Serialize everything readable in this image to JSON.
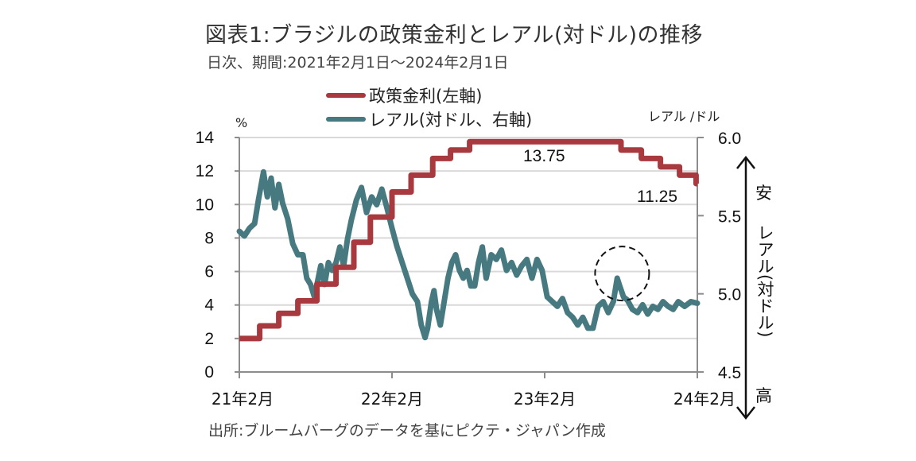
{
  "title": "図表1:ブラジルの政策金利とレアル(対ドル)の推移",
  "subtitle": "日次、期間:2021年2月1日～2024年2月1日",
  "source": "出所:ブルームバーグのデータを基にピクテ・ジャパン作成",
  "colors": {
    "policy_rate": "#a8393f",
    "brl": "#477a80",
    "grid": "#d9d9d9",
    "axis": "#8c8c8c"
  },
  "chart_data": {
    "type": "line",
    "title": "図表1:ブラジルの政策金利とレアル(対ドル)の推移",
    "left_axis": {
      "unit_label": "%",
      "range": [
        0,
        14
      ],
      "ticks": [
        0,
        2,
        4,
        6,
        8,
        10,
        12,
        14
      ],
      "tick_labels": [
        "0",
        "2",
        "4",
        "6",
        "8",
        "10",
        "12",
        "14"
      ]
    },
    "right_axis": {
      "unit_label": "レアル /ドル",
      "range": [
        4.5,
        6.0
      ],
      "ticks": [
        4.5,
        5.0,
        5.5,
        6.0
      ],
      "tick_labels": [
        "4.5",
        "5.0",
        "5.5",
        "6.0"
      ]
    },
    "x_axis": {
      "range_months": [
        0,
        36
      ],
      "ticks": [
        0,
        12,
        24,
        36
      ],
      "tick_labels": [
        "21年2月",
        "22年2月",
        "23年2月",
        "24年2月"
      ]
    },
    "grid": true,
    "legend": {
      "placement": "top-center",
      "entries": [
        "政策金利(左軸)",
        "レアル(対ドル、右軸)"
      ]
    },
    "series": [
      {
        "name": "政策金利(左軸)",
        "axis": "left",
        "style": "step",
        "points": [
          [
            0,
            2.0
          ],
          [
            1.6,
            2.75
          ],
          [
            3.1,
            3.5
          ],
          [
            4.6,
            4.25
          ],
          [
            6.1,
            5.25
          ],
          [
            7.6,
            6.25
          ],
          [
            9.0,
            7.75
          ],
          [
            10.3,
            9.25
          ],
          [
            12.0,
            10.75
          ],
          [
            13.5,
            11.75
          ],
          [
            15.2,
            12.75
          ],
          [
            16.6,
            13.25
          ],
          [
            18.1,
            13.75
          ],
          [
            30.0,
            13.25
          ],
          [
            31.6,
            12.75
          ],
          [
            33.1,
            12.25
          ],
          [
            34.6,
            11.75
          ],
          [
            35.9,
            11.25
          ],
          [
            36,
            11.25
          ]
        ]
      },
      {
        "name": "レアル(対ドル、右軸)",
        "axis": "right",
        "style": "line",
        "points": [
          [
            0,
            5.4
          ],
          [
            0.4,
            5.37
          ],
          [
            0.8,
            5.42
          ],
          [
            1.2,
            5.45
          ],
          [
            1.5,
            5.6
          ],
          [
            1.9,
            5.78
          ],
          [
            2.2,
            5.62
          ],
          [
            2.5,
            5.74
          ],
          [
            2.8,
            5.55
          ],
          [
            3.1,
            5.7
          ],
          [
            3.4,
            5.58
          ],
          [
            3.8,
            5.48
          ],
          [
            4.2,
            5.32
          ],
          [
            4.6,
            5.25
          ],
          [
            5.0,
            5.25
          ],
          [
            5.3,
            5.1
          ],
          [
            5.6,
            5.06
          ],
          [
            5.9,
            4.98
          ],
          [
            6.1,
            5.06
          ],
          [
            6.4,
            5.18
          ],
          [
            6.7,
            5.06
          ],
          [
            7.0,
            5.2
          ],
          [
            7.3,
            5.15
          ],
          [
            7.6,
            5.2
          ],
          [
            7.9,
            5.3
          ],
          [
            8.2,
            5.18
          ],
          [
            8.5,
            5.35
          ],
          [
            8.8,
            5.47
          ],
          [
            9.2,
            5.6
          ],
          [
            9.6,
            5.68
          ],
          [
            10.0,
            5.52
          ],
          [
            10.4,
            5.62
          ],
          [
            10.8,
            5.57
          ],
          [
            11.2,
            5.67
          ],
          [
            11.6,
            5.55
          ],
          [
            12.0,
            5.42
          ],
          [
            12.4,
            5.3
          ],
          [
            12.8,
            5.2
          ],
          [
            13.2,
            5.1
          ],
          [
            13.6,
            5.0
          ],
          [
            14.0,
            4.95
          ],
          [
            14.3,
            4.8
          ],
          [
            14.6,
            4.72
          ],
          [
            14.8,
            4.78
          ],
          [
            15.1,
            4.95
          ],
          [
            15.3,
            5.02
          ],
          [
            15.5,
            4.9
          ],
          [
            15.8,
            4.8
          ],
          [
            16.1,
            4.95
          ],
          [
            16.4,
            5.1
          ],
          [
            16.7,
            5.2
          ],
          [
            17.0,
            5.25
          ],
          [
            17.3,
            5.15
          ],
          [
            17.6,
            5.1
          ],
          [
            17.9,
            5.15
          ],
          [
            18.2,
            5.05
          ],
          [
            18.5,
            5.05
          ],
          [
            18.8,
            5.2
          ],
          [
            19.1,
            5.3
          ],
          [
            19.4,
            5.1
          ],
          [
            19.8,
            5.25
          ],
          [
            20.2,
            5.22
          ],
          [
            20.6,
            5.28
          ],
          [
            21.0,
            5.15
          ],
          [
            21.4,
            5.2
          ],
          [
            21.8,
            5.12
          ],
          [
            22.2,
            5.18
          ],
          [
            22.6,
            5.22
          ],
          [
            23.0,
            5.1
          ],
          [
            23.4,
            5.22
          ],
          [
            23.8,
            5.15
          ],
          [
            24.2,
            4.98
          ],
          [
            24.6,
            4.95
          ],
          [
            25.0,
            4.92
          ],
          [
            25.4,
            4.97
          ],
          [
            25.8,
            4.88
          ],
          [
            26.2,
            4.85
          ],
          [
            26.6,
            4.8
          ],
          [
            27.0,
            4.85
          ],
          [
            27.4,
            4.78
          ],
          [
            27.8,
            4.78
          ],
          [
            28.2,
            4.92
          ],
          [
            28.6,
            4.95
          ],
          [
            29.0,
            4.88
          ],
          [
            29.4,
            4.95
          ],
          [
            29.7,
            5.1
          ],
          [
            29.9,
            5.05
          ],
          [
            30.2,
            4.98
          ],
          [
            30.5,
            4.96
          ],
          [
            30.9,
            4.9
          ],
          [
            31.3,
            4.88
          ],
          [
            31.7,
            4.93
          ],
          [
            32.1,
            4.87
          ],
          [
            32.5,
            4.92
          ],
          [
            32.9,
            4.9
          ],
          [
            33.3,
            4.95
          ],
          [
            33.7,
            4.92
          ],
          [
            34.1,
            4.9
          ],
          [
            34.5,
            4.95
          ],
          [
            35.0,
            4.92
          ],
          [
            35.5,
            4.95
          ],
          [
            36,
            4.94
          ]
        ]
      }
    ],
    "annotations": [
      {
        "text": "13.75",
        "series": "政策金利(左軸)"
      },
      {
        "text": "11.25",
        "series": "政策金利(左軸)"
      },
      {
        "type": "dashed-circle",
        "x_months": 29.9,
        "y_right": 5.13
      }
    ],
    "side_arrow": {
      "top_label": "安",
      "middle_label": "レアル(対ドル)",
      "bottom_label": "高"
    }
  }
}
